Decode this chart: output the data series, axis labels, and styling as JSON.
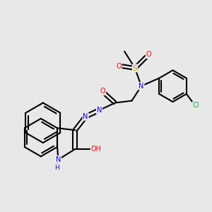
{
  "bg_color": "#e8e8e8",
  "bond_color": "#000000",
  "atom_colors": {
    "N": "#0000ff",
    "O": "#ff0000",
    "S": "#bbaa00",
    "Cl": "#00bb44",
    "C": "#000000",
    "H": "#000000"
  },
  "figsize": [
    3.0,
    3.0
  ],
  "dpi": 100
}
